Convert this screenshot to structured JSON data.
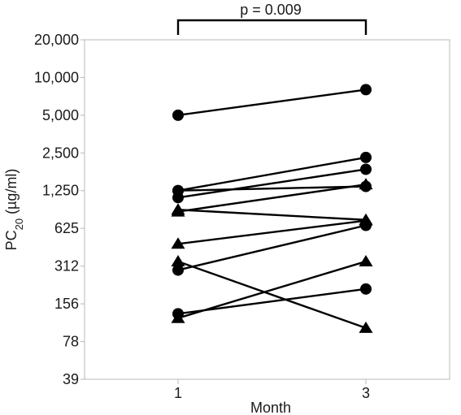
{
  "chart_data": {
    "type": "line",
    "x_categories": [
      "1",
      "3"
    ],
    "xlabel": "Month",
    "ylabel_main": "PC",
    "ylabel_sub": "20",
    "ylabel_unit": " (µg/ml)",
    "y_scale": "log",
    "ylim": [
      39,
      20000
    ],
    "y_ticks": [
      {
        "value": 39,
        "label": "39"
      },
      {
        "value": 78,
        "label": "78"
      },
      {
        "value": 156,
        "label": "156"
      },
      {
        "value": 312,
        "label": "312"
      },
      {
        "value": 625,
        "label": "625"
      },
      {
        "value": 1250,
        "label": "1,250"
      },
      {
        "value": 2500,
        "label": "2,500"
      },
      {
        "value": 5000,
        "label": "5,000"
      },
      {
        "value": 10000,
        "label": "10,000"
      },
      {
        "value": 20000,
        "label": "20,000"
      }
    ],
    "grid": false,
    "annotation": {
      "text": "p = 0.009"
    },
    "pairs": [
      {
        "marker": "circle",
        "values": [
          5000,
          8000
        ]
      },
      {
        "marker": "circle",
        "values": [
          1250,
          2300
        ]
      },
      {
        "marker": "circle",
        "values": [
          1250,
          1350
        ]
      },
      {
        "marker": "circle",
        "values": [
          1100,
          1850
        ]
      },
      {
        "marker": "circle",
        "values": [
          290,
          660
        ]
      },
      {
        "marker": "circle",
        "values": [
          130,
          205
        ]
      },
      {
        "marker": "triangle",
        "values": [
          850,
          1400
        ]
      },
      {
        "marker": "triangle",
        "values": [
          880,
          730
        ]
      },
      {
        "marker": "triangle",
        "values": [
          470,
          720
        ]
      },
      {
        "marker": "triangle",
        "values": [
          340,
          100
        ]
      },
      {
        "marker": "triangle",
        "values": [
          120,
          340
        ]
      }
    ]
  }
}
